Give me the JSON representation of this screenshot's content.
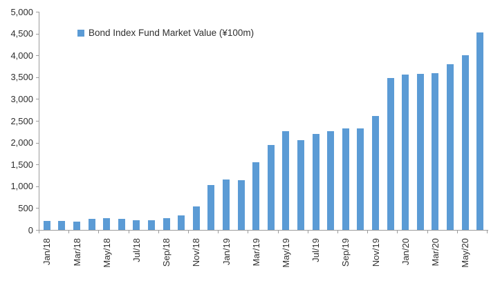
{
  "chart_data": {
    "type": "bar",
    "title": "",
    "legend_label": "Bond Index Fund Market Value (¥100m)",
    "legend_position": "top-left-inside",
    "grid": false,
    "bar_color": "#5B9BD5",
    "axis_color": "#9b9b9b",
    "text_color": "#2e2e2e",
    "categories": [
      "Jan/18",
      "Feb/18",
      "Mar/18",
      "Apr/18",
      "May/18",
      "Jun/18",
      "Jul/18",
      "Aug/18",
      "Sep/18",
      "Oct/18",
      "Nov/18",
      "Dec/18",
      "Jan/19",
      "Feb/19",
      "Mar/19",
      "Apr/19",
      "May/19",
      "Jun/19",
      "Jul/19",
      "Aug/19",
      "Sep/19",
      "Oct/19",
      "Nov/19",
      "Dec/19",
      "Jan/20",
      "Feb/20",
      "Mar/20",
      "Apr/20",
      "May/20",
      "Jun/20"
    ],
    "values": [
      200,
      200,
      195,
      260,
      262,
      258,
      228,
      228,
      272,
      338,
      535,
      1025,
      1160,
      1145,
      1555,
      1940,
      2255,
      2050,
      2195,
      2260,
      2330,
      2330,
      2605,
      3480,
      3560,
      3575,
      3590,
      3790,
      4005,
      4520
    ],
    "x_axis": {
      "label_interval": 2,
      "tick_labels": [
        "Jan/18",
        "Mar/18",
        "May/18",
        "Jul/18",
        "Sep/18",
        "Nov/18",
        "Jan/19",
        "Mar/19",
        "May/19",
        "Jul/19",
        "Sep/19",
        "Nov/19",
        "Jan/20",
        "Mar/20",
        "May/20"
      ]
    },
    "y_axis": {
      "min": 0,
      "max": 5000,
      "step": 500,
      "tick_labels": [
        "0",
        "500",
        "1,000",
        "1,500",
        "2,000",
        "2,500",
        "3,000",
        "3,500",
        "4,000",
        "4,500",
        "5,000"
      ]
    }
  }
}
